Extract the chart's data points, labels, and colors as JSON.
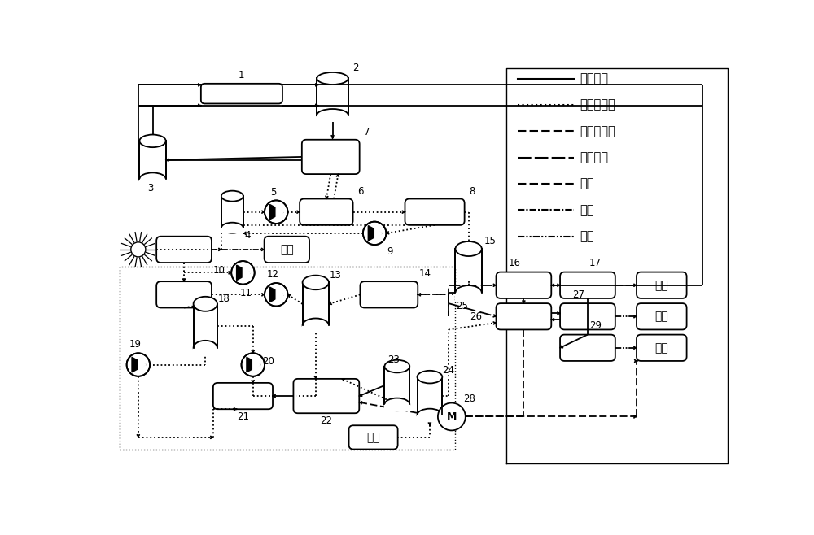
{
  "bg": "#ffffff",
  "lw": 1.3,
  "legend": [
    {
      "label": "热能输送",
      "ls": "solid"
    },
    {
      "label": "化学能输送",
      "ls": "dotted"
    },
    {
      "label": "机械能输送",
      "ls": "dashed"
    },
    {
      "label": "高温尾气",
      "ls": "longdash"
    },
    {
      "label": "制冷",
      "ls": "shortdash"
    },
    {
      "label": "发电",
      "ls": "dashdot"
    },
    {
      "label": "供热",
      "ls": "dashdotdot"
    }
  ]
}
